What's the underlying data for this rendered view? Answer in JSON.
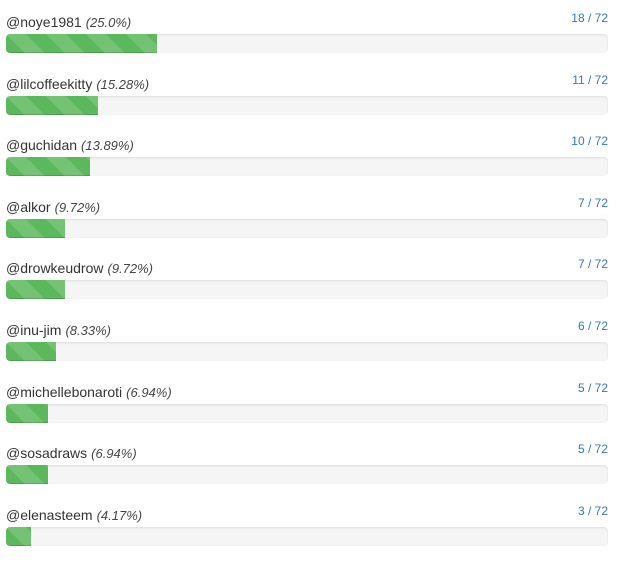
{
  "voters": [
    {
      "user": "@noye1981",
      "percent": "(25.0%)",
      "count": "18 / 72",
      "fraction": 0.25
    },
    {
      "user": "@lilcoffeekitty",
      "percent": "(15.28%)",
      "count": "11 / 72",
      "fraction": 0.1528
    },
    {
      "user": "@guchidan",
      "percent": "(13.89%)",
      "count": "10 / 72",
      "fraction": 0.1389
    },
    {
      "user": "@alkor",
      "percent": "(9.72%)",
      "count": "7 / 72",
      "fraction": 0.0972
    },
    {
      "user": "@drowkeudrow",
      "percent": "(9.72%)",
      "count": "7 / 72",
      "fraction": 0.0972
    },
    {
      "user": "@inu-jim",
      "percent": "(8.33%)",
      "count": "6 / 72",
      "fraction": 0.0833
    },
    {
      "user": "@michellebonaroti",
      "percent": "(6.94%)",
      "count": "5 / 72",
      "fraction": 0.0694
    },
    {
      "user": "@sosadraws",
      "percent": "(6.94%)",
      "count": "5 / 72",
      "fraction": 0.0694
    },
    {
      "user": "@elenasteem",
      "percent": "(4.17%)",
      "count": "3 / 72",
      "fraction": 0.0417
    }
  ],
  "colors": {
    "bar_fill": "#5cb85c",
    "track": "#f5f5f5",
    "count_text": "#337ab7",
    "label_text": "#333333"
  }
}
